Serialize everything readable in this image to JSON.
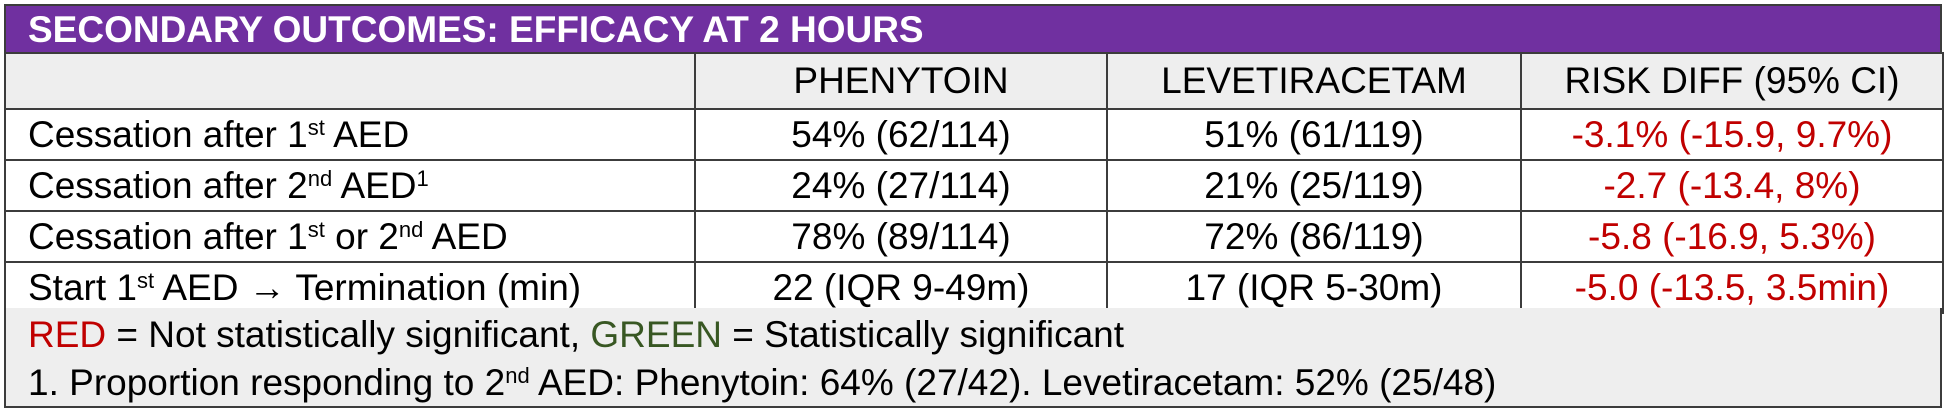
{
  "title": "SECONDARY OUTCOMES: EFFICACY AT 2 HOURS",
  "columns": [
    "",
    "PHENYTOIN",
    "LEVETIRACETAM",
    "RISK DIFF (95% CI)"
  ],
  "rows": [
    {
      "label_a": "Cessation after 1",
      "sup_a": "st",
      "label_b": " AED",
      "sup_b": "",
      "label_c": "",
      "sup_c": "",
      "label_d": "",
      "phenytoin": "54% (62/114)",
      "levetiracetam": "51% (61/119)",
      "risk_diff": "-3.1% (-15.9, 9.7%)"
    },
    {
      "label_a": "Cessation after 2",
      "sup_a": "nd",
      "label_b": " AED",
      "sup_b": "1",
      "label_c": "",
      "sup_c": "",
      "label_d": "",
      "phenytoin": "24% (27/114)",
      "levetiracetam": "21% (25/119)",
      "risk_diff": "-2.7 (-13.4, 8%)"
    },
    {
      "label_a": "Cessation after 1",
      "sup_a": "st",
      "label_b": " or 2",
      "sup_b": "nd",
      "label_c": " AED",
      "sup_c": "",
      "label_d": "",
      "phenytoin": "78% (89/114)",
      "levetiracetam": "72% (86/119)",
      "risk_diff": "-5.8 (-16.9, 5.3%)"
    },
    {
      "label_a": "Start 1",
      "sup_a": "st",
      "label_b": " AED → Termination (min)",
      "sup_b": "",
      "label_c": "",
      "sup_c": "",
      "label_d": "",
      "phenytoin": "22 (IQR 9-49m)",
      "levetiracetam": "17 (IQR 5-30m)",
      "risk_diff": "-5.0 (-13.5, 3.5min)"
    }
  ],
  "legend": {
    "red_word": "RED",
    "red_text": " = Not statistically significant, ",
    "green_word": "GREEN",
    "green_text": " = Statistically significant"
  },
  "footnote": {
    "part1": "1. Proportion responding to 2",
    "sup": "nd",
    "part2": " AED: Phenytoin: 64% (27/42). Levetiracetam: 52% (25/48)"
  },
  "colors": {
    "header_bg": "#7030a0",
    "not_significant": "#c00000",
    "significant": "#385723"
  }
}
